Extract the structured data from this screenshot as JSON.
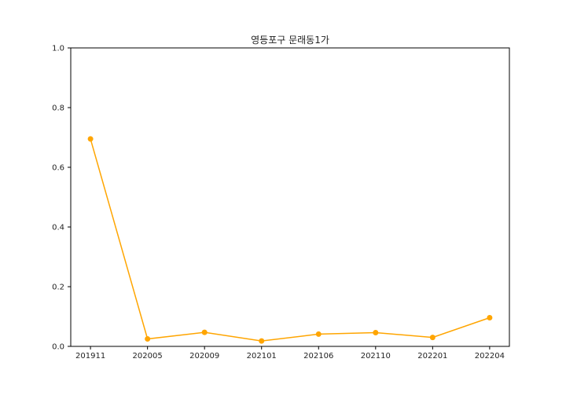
{
  "chart_data": {
    "type": "line",
    "title": "영등포구 문래동1가",
    "xlabel": "",
    "ylabel": "",
    "categories": [
      "201911",
      "202005",
      "202009",
      "202101",
      "202106",
      "202110",
      "202201",
      "202204"
    ],
    "series": [
      {
        "values": [
          0.695,
          0.025,
          0.047,
          0.018,
          0.041,
          0.046,
          0.03,
          0.096
        ],
        "color": "#ffa500"
      }
    ],
    "ylim": [
      0.0,
      1.0
    ],
    "yticks": [
      "0.0",
      "0.2",
      "0.4",
      "0.6",
      "0.8",
      "1.0"
    ],
    "grid": false,
    "legend": "none"
  }
}
